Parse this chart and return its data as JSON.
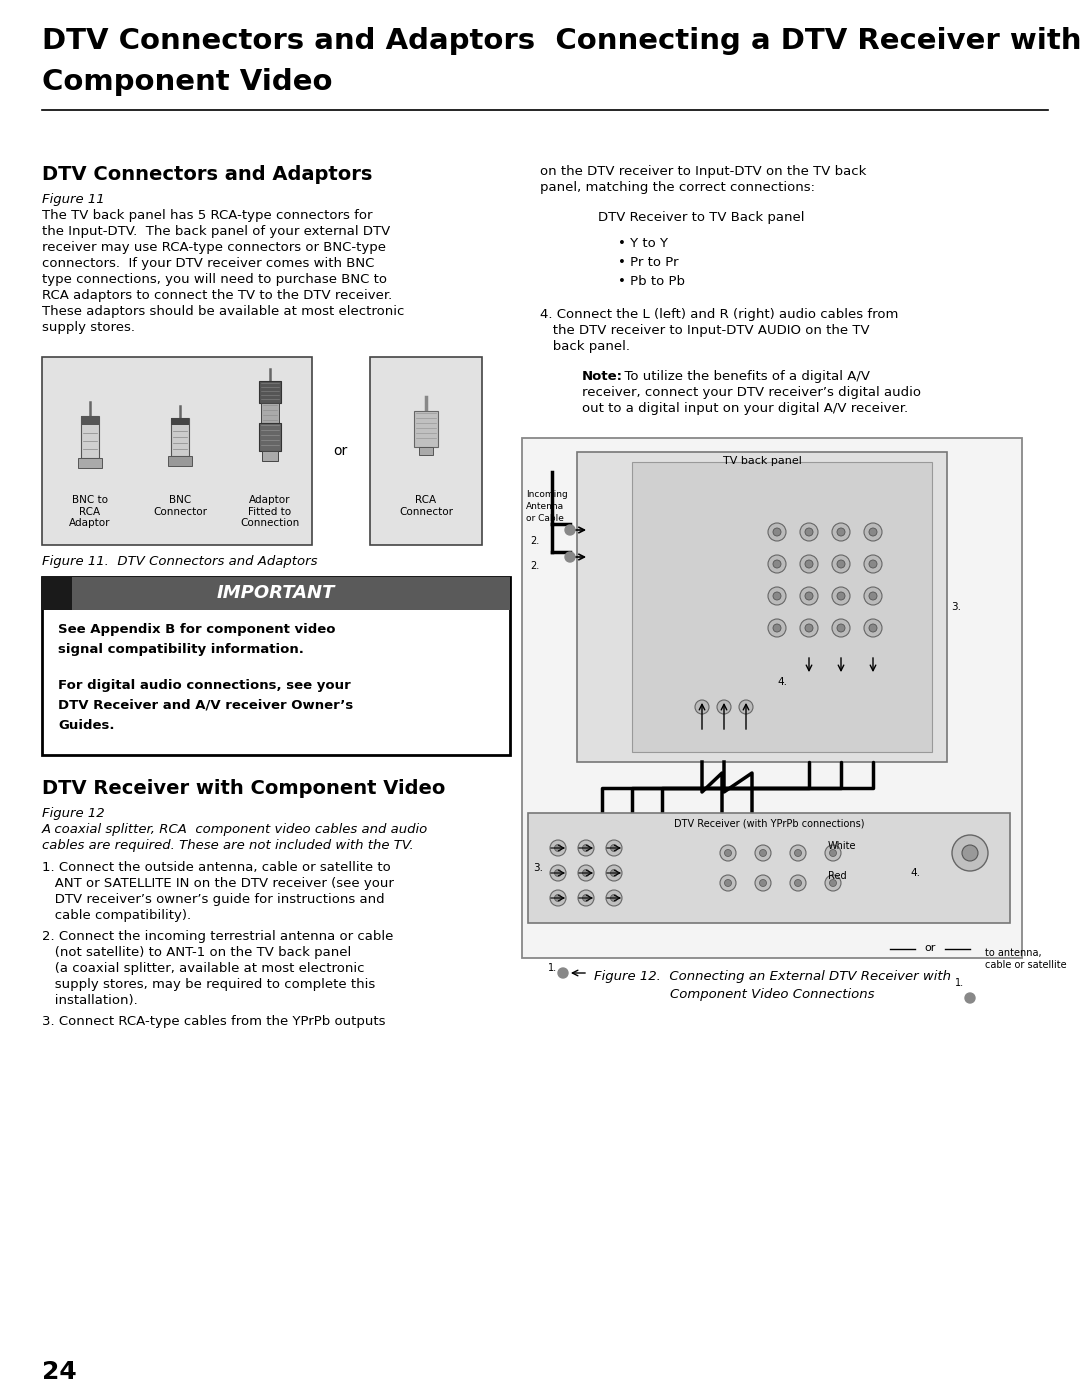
{
  "page_bg": "#ffffff",
  "title_line1": "DTV Connectors and Adaptors  Connecting a DTV Receiver with",
  "title_line2": "Component Video",
  "left_heading": "DTV Connectors and Adaptors",
  "fig11_label": "Figure 11",
  "left_body": [
    "The TV back panel has 5 RCA-type connectors for",
    "the Input-DTV.  The back panel of your external DTV",
    "receiver may use RCA-type connectors or BNC-type",
    "connectors.  If your DTV receiver comes with BNC",
    "type connections, you will need to purchase BNC to",
    "RCA adaptors to connect the TV to the DTV receiver.",
    "These adaptors should be available at most electronic",
    "supply stores."
  ],
  "fig11_caption": "Figure 11.  DTV Connectors and Adaptors",
  "important_title": "IMPORTANT",
  "important_body1": "See Appendix B for component video\nsignal compatibility information.",
  "important_body2": "For digital audio connections, see your\nDTV Receiver and A/V receiver Owner’s\nGuides.",
  "right_heading": "DTV Receiver with Component Video",
  "fig12_label": "Figure 12",
  "right_italic": [
    "A coaxial splitter, RCA  component video cables and audio",
    "cables are required. These are not included with the TV."
  ],
  "right_col_top": [
    "on the DTV receiver to Input-DTV on the TV back",
    "panel, matching the correct connections:"
  ],
  "dtv_to_tv": "DTV Receiver to TV Back panel",
  "bullet_y": "• Y to Y",
  "bullet_pr": "• Pr to Pr",
  "bullet_pb": "• Pb to Pb",
  "step4_line1": "4. Connect the L (left) and R (right) audio cables from",
  "step4_line2": "   the DTV receiver to Input-DTV AUDIO on the TV",
  "step4_line3": "   back panel.",
  "note_bold": "Note:",
  "note_rest": "  To utilize the benefits of a digital A/V",
  "note_line2": "receiver, connect your DTV receiver’s digital audio",
  "note_line3": "out to a digital input on your digital A/V receiver.",
  "step1": [
    "1. Connect the outside antenna, cable or satellite to",
    "   ANT or SATELLITE IN on the DTV receiver (see your",
    "   DTV receiver’s owner’s guide for instructions and",
    "   cable compatibility)."
  ],
  "step2": [
    "2. Connect the incoming terrestrial antenna or cable",
    "   (not satellite) to ANT-1 on the TV back panel",
    "   (a coaxial splitter, available at most electronic",
    "   supply stores, may be required to complete this",
    "   installation)."
  ],
  "step3": "3. Connect RCA-type cables from the YPrPb outputs",
  "fig12_cap1": "Figure 12.  Connecting an External DTV Receiver with",
  "fig12_cap2": "Component Video Connections",
  "page_number": "24",
  "tv_back_panel_label": "TV back panel",
  "incoming_label": "Incoming\nAntenna\nor Cable",
  "dtv_receiver_box_label": "DTV Receiver (with YPrPb connections)",
  "label_2a": "2.",
  "label_2b": "2.",
  "label_3": "3.",
  "label_4": "4.",
  "label_3b": "3.",
  "label_4b": "4.",
  "white_label": "White",
  "red_label": "Red",
  "or_label": "or",
  "label_1a": "1.",
  "label_1b": "1.",
  "to_antenna": "to antenna,\ncable or satellite"
}
